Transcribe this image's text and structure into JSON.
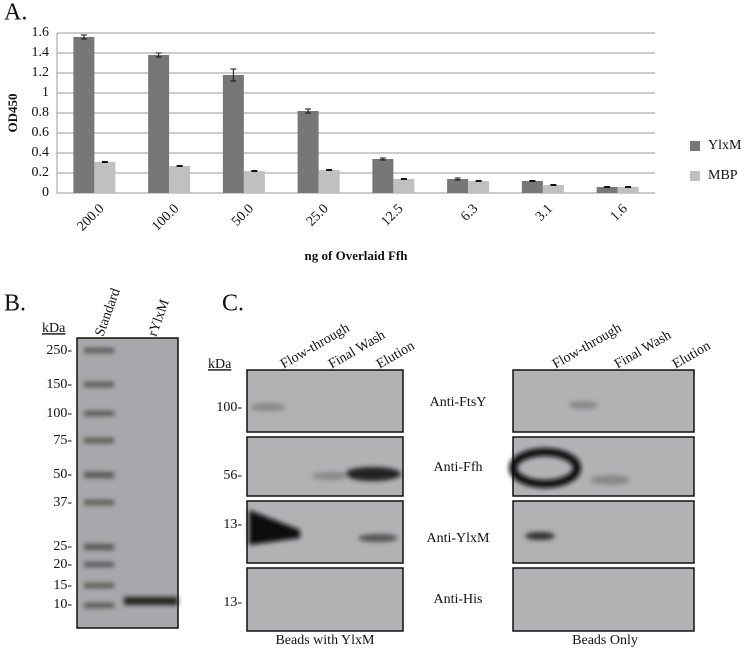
{
  "chart_data": {
    "type": "bar",
    "label": "A.",
    "ylabel": "OD450",
    "xlabel": "ng of Overlaid Ffh",
    "categories": [
      "200.0",
      "100.0",
      "50.0",
      "25.0",
      "12.5",
      "6.3",
      "3.1",
      "1.6"
    ],
    "series": [
      {
        "name": "YlxM",
        "color": "#777777",
        "values": [
          1.56,
          1.38,
          1.18,
          0.82,
          0.34,
          0.14,
          0.12,
          0.06
        ],
        "errors": [
          0.02,
          0.02,
          0.06,
          0.02,
          0.01,
          0.01,
          0.005,
          0.005
        ]
      },
      {
        "name": "MBP",
        "color": "#c0c0c0",
        "values": [
          0.31,
          0.27,
          0.22,
          0.23,
          0.14,
          0.12,
          0.08,
          0.06
        ],
        "errors": [
          0.005,
          0.005,
          0.005,
          0.005,
          0.005,
          0.005,
          0.005,
          0.005
        ]
      }
    ],
    "ylim": [
      0,
      1.6
    ],
    "yticks": [
      0,
      0.2,
      0.4,
      0.6,
      0.8,
      1,
      1.2,
      1.4,
      1.6
    ],
    "grid": true,
    "legend": "right"
  },
  "panel_b": {
    "label": "B.",
    "unit": "kDa",
    "lanes": [
      "Standard",
      "rYlxM"
    ],
    "markers": [
      "250-",
      "150-",
      "100-",
      "75-",
      "50-",
      "37-",
      "25-",
      "20-",
      "15-",
      "10-"
    ]
  },
  "panel_c": {
    "label": "C.",
    "unit": "kDa",
    "lanes": [
      "Flow-through",
      "Final Wash",
      "Elution"
    ],
    "blots": [
      {
        "antibody": "Anti-FtsY",
        "marker": "100-"
      },
      {
        "antibody": "Anti-Ffh",
        "marker": "56-"
      },
      {
        "antibody": "Anti-YlxM",
        "marker": "13-"
      },
      {
        "antibody": "Anti-His",
        "marker": "13-"
      }
    ],
    "groups": [
      "Beads with YlxM",
      "Beads Only"
    ]
  }
}
